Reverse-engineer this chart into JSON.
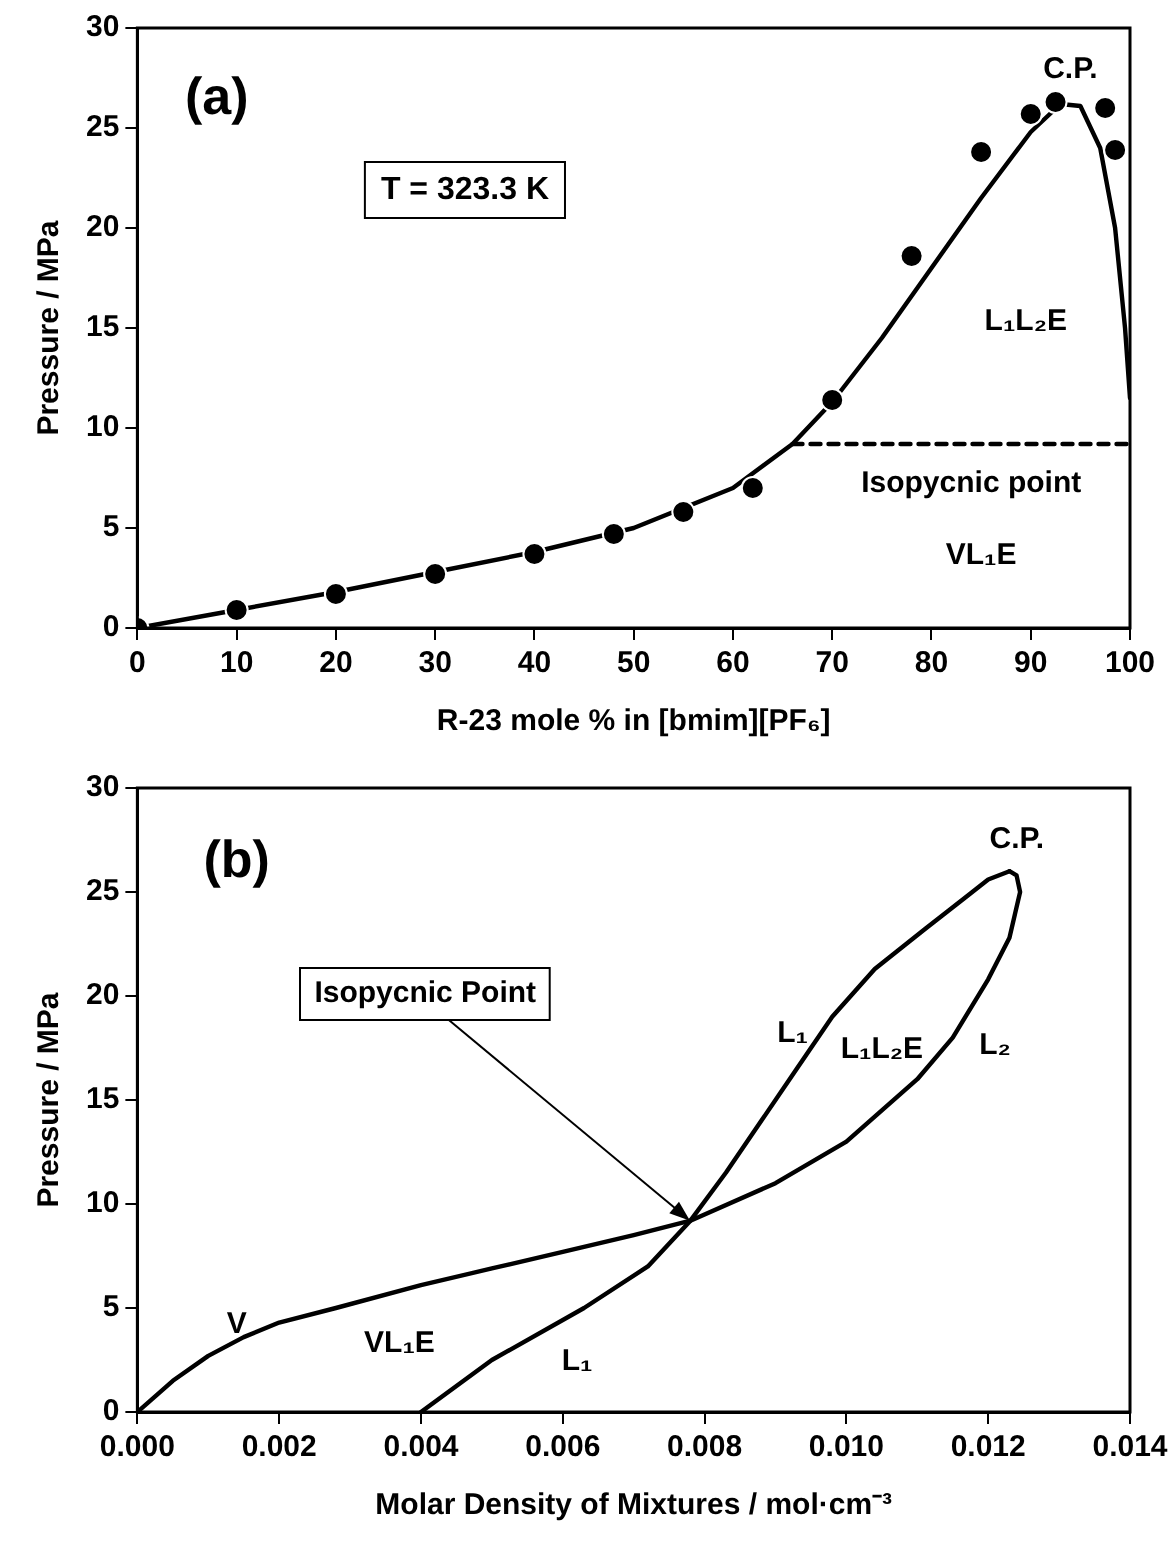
{
  "chart_data": [
    {
      "type": "scatter",
      "xlabel": "R-23 mole % in [bmim][PF₆]",
      "ylabel": "Pressure / MPa",
      "xlim": [
        0,
        100
      ],
      "ylim": [
        0,
        30
      ],
      "xticks": [
        0,
        10,
        20,
        30,
        40,
        50,
        60,
        70,
        80,
        90,
        100
      ],
      "yticks": [
        0,
        5,
        10,
        15,
        20,
        25,
        30
      ],
      "grid": false,
      "legend": false,
      "series": [
        {
          "type": "scatter",
          "marker": "circle",
          "color": "#000000",
          "x": [
            0,
            10,
            20,
            30,
            40,
            48,
            55,
            62,
            70,
            78,
            85,
            90,
            92.5,
            97.5,
            98.5
          ],
          "values": [
            0,
            0.9,
            1.7,
            2.7,
            3.7,
            4.7,
            5.8,
            7,
            11.4,
            18.6,
            23.8,
            25.7,
            26.3,
            26,
            23.9
          ]
        },
        {
          "type": "line",
          "color": "#000000",
          "line_style": "solid",
          "x": [
            0,
            10,
            20,
            30,
            40,
            50,
            60,
            66,
            70,
            75,
            80,
            85,
            90,
            93,
            95,
            97,
            98.5,
            99.5,
            100
          ],
          "values": [
            0,
            0.9,
            1.8,
            2.8,
            3.8,
            5,
            7,
            9.2,
            11.3,
            14.5,
            18,
            21.5,
            24.8,
            26.2,
            26.1,
            24,
            20,
            15,
            11.5
          ]
        },
        {
          "type": "line",
          "color": "#000000",
          "line_style": "dashed",
          "x": [
            66,
            100
          ],
          "values": [
            9.2,
            9.2
          ]
        }
      ],
      "annotations": [
        "(a)",
        "T = 323.3 K",
        "C.P.",
        "L₁L₂E",
        "Isopycnic point",
        "VL₁E"
      ]
    },
    {
      "type": "line",
      "xlabel": "Molar Density of Mixtures / mol·cm⁻³",
      "ylabel": "Pressure / MPa",
      "xlim": [
        0,
        0.014
      ],
      "ylim": [
        0,
        30
      ],
      "xticks": [
        {
          "value": 0,
          "label": "0.000"
        },
        {
          "value": 0.002,
          "label": "0.002"
        },
        {
          "value": 0.004,
          "label": "0.004"
        },
        {
          "value": 0.006,
          "label": "0.006"
        },
        {
          "value": 0.008,
          "label": "0.008"
        },
        {
          "value": 0.01,
          "label": "0.010"
        },
        {
          "value": 0.012,
          "label": "0.012"
        },
        {
          "value": 0.014,
          "label": "0.014"
        }
      ],
      "yticks": [
        0,
        5,
        10,
        15,
        20,
        25,
        30
      ],
      "grid": false,
      "legend": false,
      "series": [
        {
          "color": "#000000",
          "x": [
            0,
            0.0005,
            0.001,
            0.0015,
            0.002,
            0.0028,
            0.004,
            0.005,
            0.006,
            0.007,
            0.0078,
            0.009,
            0.01,
            0.011,
            0.0115,
            0.012,
            0.0123,
            0.01245,
            0.0124,
            0.0123
          ],
          "values": [
            0,
            1.5,
            2.7,
            3.6,
            4.3,
            5,
            6.1,
            6.9,
            7.7,
            8.5,
            9.2,
            11,
            13,
            16,
            18,
            20.8,
            22.8,
            25,
            25.8,
            26
          ]
        },
        {
          "color": "#000000",
          "x": [
            0.004,
            0.005,
            0.0063,
            0.0072,
            0.0078,
            0.0083,
            0.0088,
            0.0093,
            0.0098,
            0.0104,
            0.0111,
            0.0117,
            0.012,
            0.0123
          ],
          "values": [
            0,
            2.5,
            5,
            7,
            9.2,
            11.5,
            14,
            16.5,
            19,
            21.3,
            23.2,
            24.8,
            25.6,
            26
          ]
        }
      ],
      "annotations": [
        "(b)",
        {
          "text": "Isopycnic Point",
          "x": 0.0078,
          "y": 9.2
        },
        "C.P.",
        "L₁",
        "L₁L₂E",
        "L₂",
        "V",
        "VL₁E",
        "L₁"
      ]
    }
  ]
}
